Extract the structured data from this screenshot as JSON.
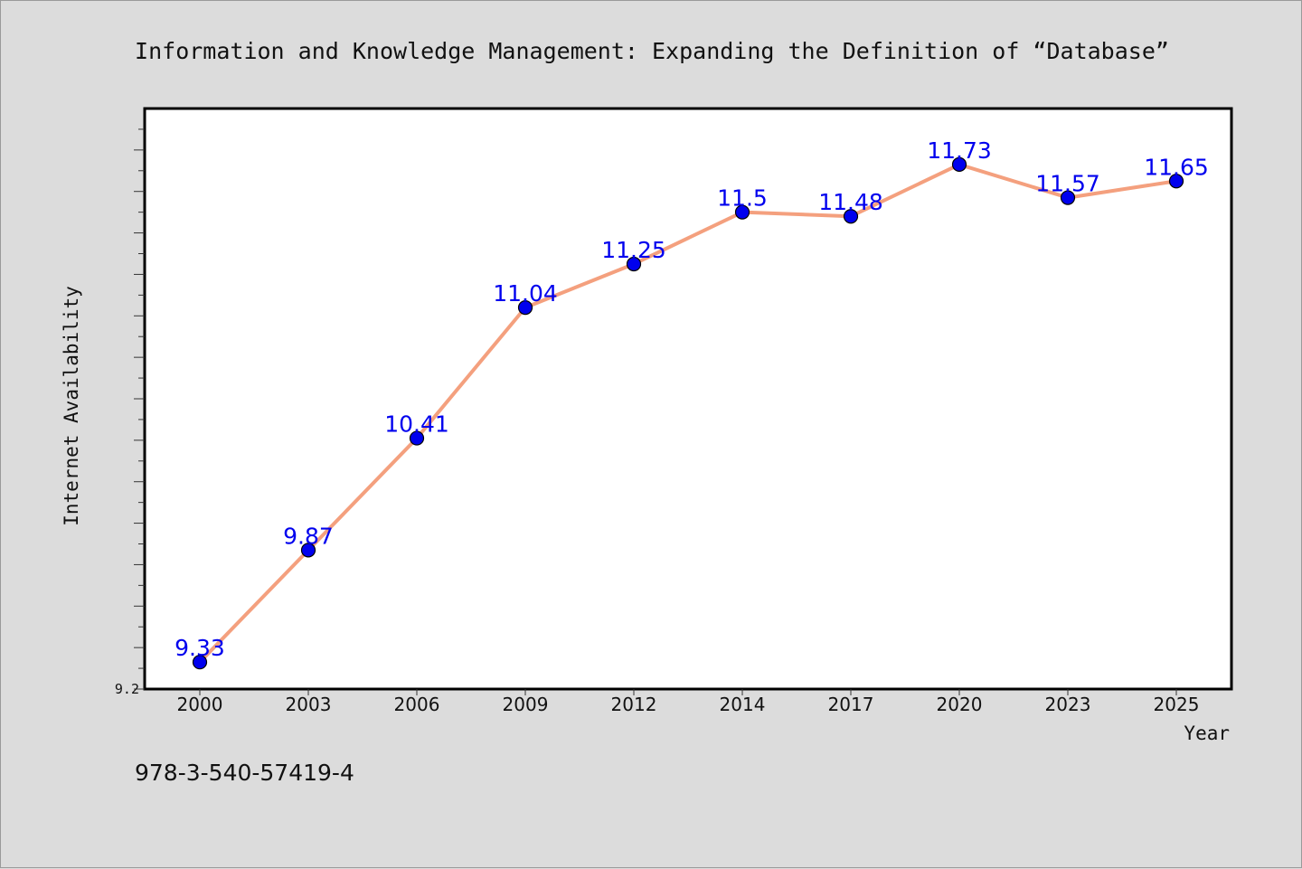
{
  "chart_data": {
    "type": "line",
    "title": "Information and Knowledge Management: Expanding the Definition of “Database”",
    "xlabel": "Year",
    "ylabel": "Internet Availability",
    "categories": [
      "2000",
      "2003",
      "2006",
      "2009",
      "2012",
      "2014",
      "2017",
      "2020",
      "2023",
      "2025"
    ],
    "series": [
      {
        "values": [
          9.33,
          9.87,
          10.41,
          11.04,
          11.25,
          11.5,
          11.48,
          11.73,
          11.57,
          11.65
        ],
        "data_labels": [
          "9.33",
          "9.87",
          "10.41",
          "11.04",
          "11.25",
          "11.5",
          "11.48",
          "11.73",
          "11.57",
          "11.65"
        ],
        "line_color": "#f4a07e",
        "marker_color": "#0000ee"
      }
    ],
    "ylim": [
      9.2,
      12.0
    ],
    "yticks_labeled": [
      "9.2"
    ],
    "grid": false,
    "legend": "none"
  },
  "footer": {
    "isbn": "978-3-540-57419-4"
  }
}
